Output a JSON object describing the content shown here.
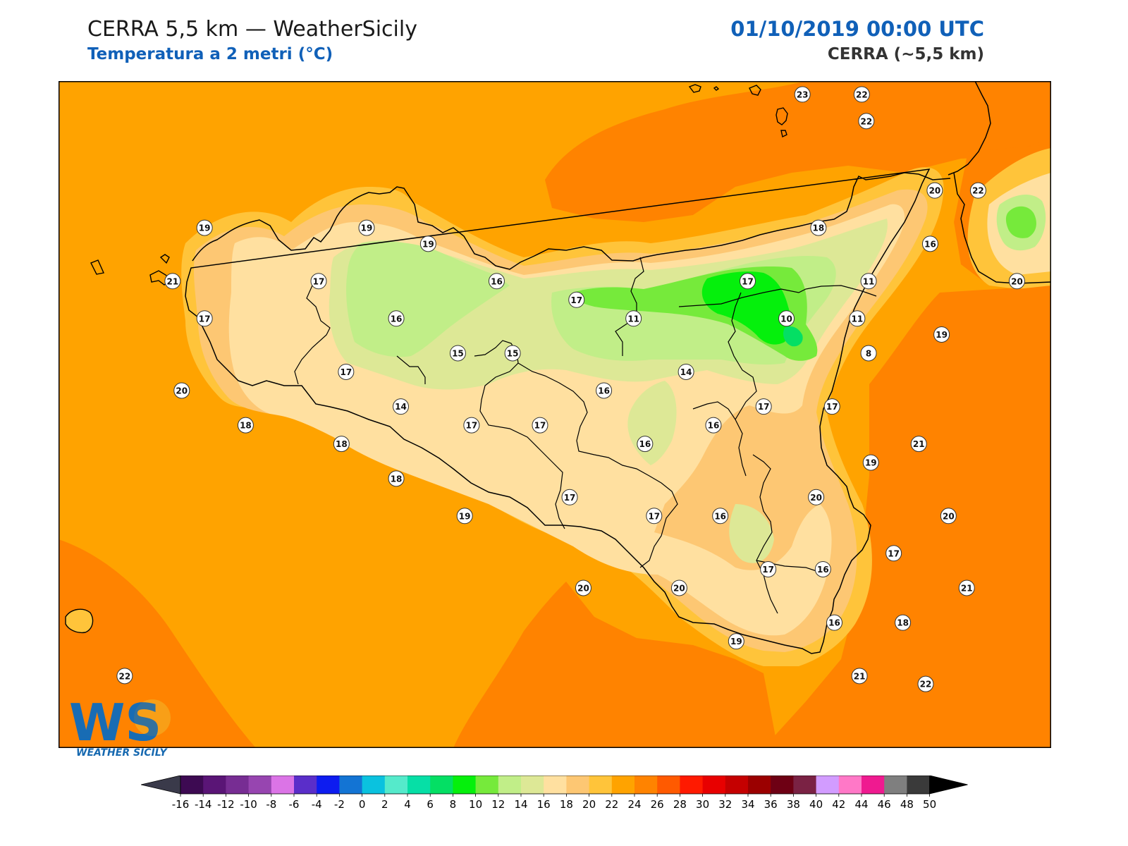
{
  "header": {
    "title": "CERRA 5,5 km — WeatherSicily",
    "subtitle": "Temperatura a 2 metri (°C)",
    "datetime": "01/10/2019 00:00 UTC",
    "model": "CERRA (~5,5 km)"
  },
  "map": {
    "variable": "2m temperature",
    "unit": "°C",
    "stations": [
      {
        "v": "23",
        "lon": 14.96,
        "lat": 38.8
      },
      {
        "v": "22",
        "lon": 15.22,
        "lat": 38.8
      },
      {
        "v": "22",
        "lon": 15.24,
        "lat": 38.7
      },
      {
        "v": "19",
        "lon": 12.34,
        "lat": 38.3
      },
      {
        "v": "19",
        "lon": 13.05,
        "lat": 38.3
      },
      {
        "v": "19",
        "lon": 13.32,
        "lat": 38.24
      },
      {
        "v": "21",
        "lon": 12.2,
        "lat": 38.1
      },
      {
        "v": "17",
        "lon": 12.84,
        "lat": 38.1
      },
      {
        "v": "16",
        "lon": 13.62,
        "lat": 38.1
      },
      {
        "v": "17",
        "lon": 13.97,
        "lat": 38.03
      },
      {
        "v": "17",
        "lon": 14.72,
        "lat": 38.1
      },
      {
        "v": "18",
        "lon": 15.03,
        "lat": 38.3
      },
      {
        "v": "16",
        "lon": 15.52,
        "lat": 38.24
      },
      {
        "v": "20",
        "lon": 15.9,
        "lat": 38.1
      },
      {
        "v": "22",
        "lon": 15.73,
        "lat": 38.44
      },
      {
        "v": "20",
        "lon": 15.54,
        "lat": 38.44
      },
      {
        "v": "17",
        "lon": 12.34,
        "lat": 37.96
      },
      {
        "v": "16",
        "lon": 13.18,
        "lat": 37.96
      },
      {
        "v": "11",
        "lon": 14.22,
        "lat": 37.96
      },
      {
        "v": "10",
        "lon": 14.89,
        "lat": 37.96
      },
      {
        "v": "11",
        "lon": 15.2,
        "lat": 37.96
      },
      {
        "v": "11",
        "lon": 15.25,
        "lat": 38.1
      },
      {
        "v": "19",
        "lon": 15.57,
        "lat": 37.9
      },
      {
        "v": "15",
        "lon": 13.45,
        "lat": 37.83
      },
      {
        "v": "15",
        "lon": 13.69,
        "lat": 37.83
      },
      {
        "v": "8",
        "lon": 15.25,
        "lat": 37.83
      },
      {
        "v": "20",
        "lon": 12.24,
        "lat": 37.69
      },
      {
        "v": "17",
        "lon": 12.96,
        "lat": 37.76
      },
      {
        "v": "14",
        "lon": 14.45,
        "lat": 37.76
      },
      {
        "v": "16",
        "lon": 14.09,
        "lat": 37.69
      },
      {
        "v": "14",
        "lon": 13.2,
        "lat": 37.63
      },
      {
        "v": "17",
        "lon": 14.79,
        "lat": 37.63
      },
      {
        "v": "17",
        "lon": 15.09,
        "lat": 37.63
      },
      {
        "v": "18",
        "lon": 12.52,
        "lat": 37.56
      },
      {
        "v": "17",
        "lon": 13.51,
        "lat": 37.56
      },
      {
        "v": "17",
        "lon": 13.81,
        "lat": 37.56
      },
      {
        "v": "16",
        "lon": 14.57,
        "lat": 37.56
      },
      {
        "v": "18",
        "lon": 12.94,
        "lat": 37.49
      },
      {
        "v": "16",
        "lon": 14.27,
        "lat": 37.49
      },
      {
        "v": "21",
        "lon": 15.47,
        "lat": 37.49
      },
      {
        "v": "19",
        "lon": 15.26,
        "lat": 37.42
      },
      {
        "v": "18",
        "lon": 13.18,
        "lat": 37.36
      },
      {
        "v": "17",
        "lon": 13.94,
        "lat": 37.29
      },
      {
        "v": "20",
        "lon": 15.02,
        "lat": 37.29
      },
      {
        "v": "19",
        "lon": 13.48,
        "lat": 37.22
      },
      {
        "v": "17",
        "lon": 14.31,
        "lat": 37.22
      },
      {
        "v": "16",
        "lon": 14.6,
        "lat": 37.22
      },
      {
        "v": "20",
        "lon": 15.6,
        "lat": 37.22
      },
      {
        "v": "17",
        "lon": 15.36,
        "lat": 37.08
      },
      {
        "v": "17",
        "lon": 14.81,
        "lat": 37.02
      },
      {
        "v": "16",
        "lon": 15.05,
        "lat": 37.02
      },
      {
        "v": "21",
        "lon": 15.68,
        "lat": 36.95
      },
      {
        "v": "20",
        "lon": 14.0,
        "lat": 36.95
      },
      {
        "v": "20",
        "lon": 14.42,
        "lat": 36.95
      },
      {
        "v": "16",
        "lon": 15.1,
        "lat": 36.82
      },
      {
        "v": "18",
        "lon": 15.4,
        "lat": 36.82
      },
      {
        "v": "19",
        "lon": 14.67,
        "lat": 36.75
      },
      {
        "v": "22",
        "lon": 11.99,
        "lat": 36.62
      },
      {
        "v": "21",
        "lon": 15.21,
        "lat": 36.62
      },
      {
        "v": "22",
        "lon": 15.5,
        "lat": 36.59
      }
    ]
  },
  "colorbar": {
    "ticks": [
      "-16",
      "-14",
      "-12",
      "-10",
      "-8",
      "-6",
      "-4",
      "-2",
      "0",
      "2",
      "4",
      "6",
      "8",
      "10",
      "12",
      "14",
      "16",
      "18",
      "20",
      "22",
      "24",
      "26",
      "28",
      "30",
      "32",
      "34",
      "36",
      "38",
      "40",
      "42",
      "44",
      "46",
      "48",
      "50"
    ],
    "colors": [
      "#3d0a52",
      "#5a1576",
      "#772d93",
      "#9745b0",
      "#db74e6",
      "#5a2ec9",
      "#0d1cf0",
      "#1374d4",
      "#0ac2df",
      "#55eacb",
      "#06dfa6",
      "#04df64",
      "#05f00c",
      "#76ea3b",
      "#c1ee88",
      "#dde896",
      "#ffe0a0",
      "#fdc773",
      "#ffc43a",
      "#ffa300",
      "#ff8300",
      "#ff5a00",
      "#ff1a00",
      "#e80000",
      "#c50000",
      "#9b0000",
      "#6e0014",
      "#7a2244",
      "#d29cff",
      "#ff78c7",
      "#ef1a90",
      "#7f7f7f",
      "#3a3a3a"
    ]
  },
  "logo": {
    "mark": "WS",
    "name": "WEATHER SICILY"
  }
}
